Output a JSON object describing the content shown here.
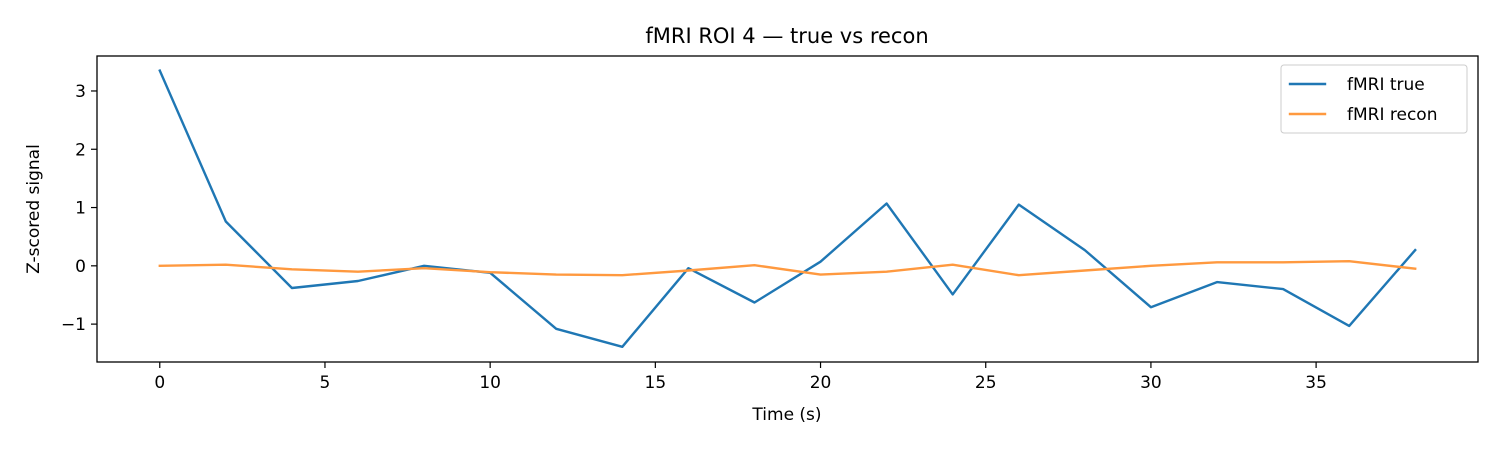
{
  "chart_data": {
    "type": "line",
    "title": "fMRI ROI 4 — true vs recon",
    "xlabel": "Time (s)",
    "ylabel": "Z-scored signal",
    "xlim": [
      -1.9,
      39.9
    ],
    "ylim": [
      -1.65,
      3.6
    ],
    "xticks": [
      0,
      5,
      10,
      15,
      20,
      25,
      30,
      35
    ],
    "yticks": [
      -1,
      0,
      1,
      2,
      3
    ],
    "ytick_labels": [
      "−1",
      "0",
      "1",
      "2",
      "3"
    ],
    "grid": false,
    "legend_position": "top-right",
    "x": [
      0,
      2,
      4,
      6,
      8,
      10,
      12,
      14,
      16,
      18,
      20,
      22,
      24,
      26,
      28,
      30,
      32,
      34,
      36,
      38
    ],
    "series": [
      {
        "name": "fMRI true",
        "color": "#1f77b4",
        "values": [
          3.35,
          0.76,
          -0.38,
          -0.26,
          0.0,
          -0.12,
          -1.08,
          -1.39,
          -0.04,
          -0.63,
          0.07,
          1.07,
          -0.49,
          1.05,
          0.27,
          -0.71,
          -0.28,
          -0.4,
          -1.03,
          0.27
        ]
      },
      {
        "name": "fMRI recon",
        "color": "#ff993f",
        "values": [
          0.0,
          0.02,
          -0.06,
          -0.1,
          -0.04,
          -0.11,
          -0.15,
          -0.16,
          -0.08,
          0.01,
          -0.15,
          -0.1,
          0.02,
          -0.16,
          -0.08,
          0.0,
          0.06,
          0.06,
          0.08,
          -0.05
        ]
      }
    ]
  }
}
